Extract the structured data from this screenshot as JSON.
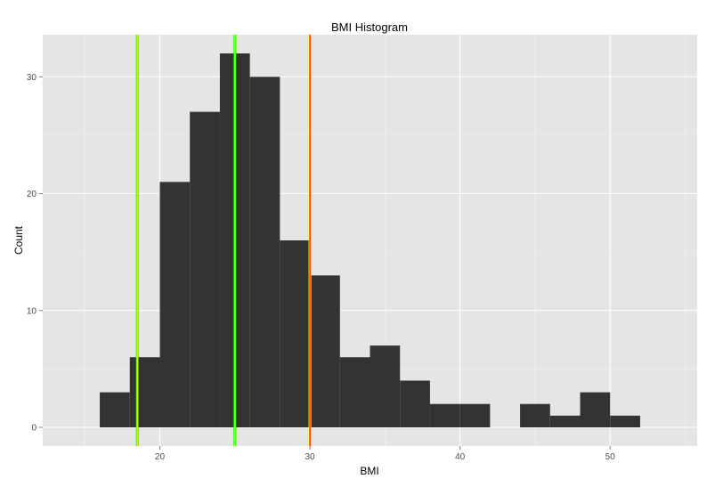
{
  "chart_data": {
    "type": "bar",
    "title": "BMI Histogram",
    "xlabel": "BMI",
    "ylabel": "Count",
    "bin_width": 2,
    "bins": [
      {
        "start": 16,
        "end": 18,
        "count": 3
      },
      {
        "start": 18,
        "end": 20,
        "count": 6
      },
      {
        "start": 20,
        "end": 22,
        "count": 21
      },
      {
        "start": 22,
        "end": 24,
        "count": 27
      },
      {
        "start": 24,
        "end": 26,
        "count": 32
      },
      {
        "start": 26,
        "end": 28,
        "count": 30
      },
      {
        "start": 28,
        "end": 30,
        "count": 16
      },
      {
        "start": 30,
        "end": 32,
        "count": 13
      },
      {
        "start": 32,
        "end": 34,
        "count": 6
      },
      {
        "start": 34,
        "end": 36,
        "count": 7
      },
      {
        "start": 36,
        "end": 38,
        "count": 4
      },
      {
        "start": 38,
        "end": 40,
        "count": 2
      },
      {
        "start": 40,
        "end": 42,
        "count": 2
      },
      {
        "start": 42,
        "end": 44,
        "count": 0
      },
      {
        "start": 44,
        "end": 46,
        "count": 2
      },
      {
        "start": 46,
        "end": 48,
        "count": 1
      },
      {
        "start": 48,
        "end": 50,
        "count": 3
      },
      {
        "start": 50,
        "end": 52,
        "count": 1
      }
    ],
    "xlim": [
      12.2,
      55.8
    ],
    "ylim": [
      -1.6,
      33.6
    ],
    "x_ticks": [
      20,
      30,
      40,
      50
    ],
    "x_tick_labels": [
      "20",
      "30",
      "40",
      "50"
    ],
    "y_ticks": [
      0,
      10,
      20,
      30
    ],
    "y_tick_labels": [
      "0",
      "10",
      "20",
      "30"
    ],
    "grid": true,
    "bar_color": "#333333",
    "panel_background": "#E5E5E5",
    "reference_lines": [
      {
        "x": 18.5,
        "color": "#FFFF00",
        "outline": "#00FF00"
      },
      {
        "x": 25,
        "color": "#FFFF00",
        "outline": "#00FF00"
      },
      {
        "x": 30,
        "color": "#FF0000",
        "outline": "#FFFF00"
      }
    ]
  }
}
